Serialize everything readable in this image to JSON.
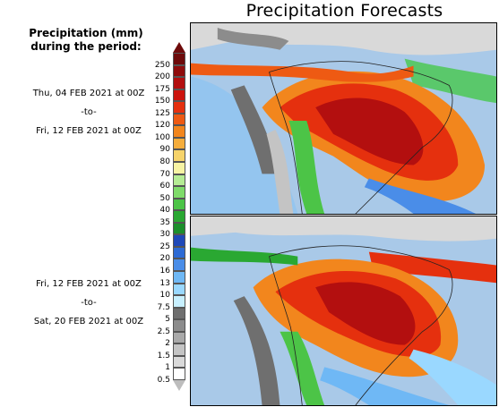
{
  "title": "Precipitation Forecasts",
  "legend": {
    "heading_line1": "Precipitation (mm)",
    "heading_line2": "during the period:",
    "levels": [
      "0.5",
      "1",
      "1.5",
      "2",
      "2.5",
      "5",
      "7.5",
      "10",
      "13",
      "16",
      "20",
      "25",
      "30",
      "35",
      "40",
      "50",
      "60",
      "70",
      "80",
      "90",
      "100",
      "120",
      "125",
      "150",
      "175",
      "200",
      "250"
    ],
    "colors": [
      "#ffffff",
      "#d9d9d9",
      "#c4c4c4",
      "#a9a9a9",
      "#8c8c8c",
      "#6f6f6f",
      "#c8f0ff",
      "#9ad8ff",
      "#6fb8f5",
      "#4a8de8",
      "#2d6ad4",
      "#1f48b8",
      "#1c8f2c",
      "#2aa832",
      "#4cc447",
      "#7fdb6a",
      "#b5ec94",
      "#f7f3a3",
      "#f6d36a",
      "#f5ad3c",
      "#f2861d",
      "#ee5a13",
      "#e5300e",
      "#cc140d",
      "#b30f0f",
      "#8f0c0c",
      "#6e0a0a"
    ]
  },
  "periods": [
    {
      "start": "Thu, 04 FEB 2021 at 00Z",
      "to": "-to-",
      "end": "Fri, 12 FEB 2021 at 00Z"
    },
    {
      "start": "Fri, 12 FEB 2021 at 00Z",
      "to": "-to-",
      "end": "Sat, 20 FEB 2021 at 00Z"
    }
  ],
  "maps": [
    {
      "name": "forecast-map-period-1"
    },
    {
      "name": "forecast-map-period-2"
    }
  ]
}
